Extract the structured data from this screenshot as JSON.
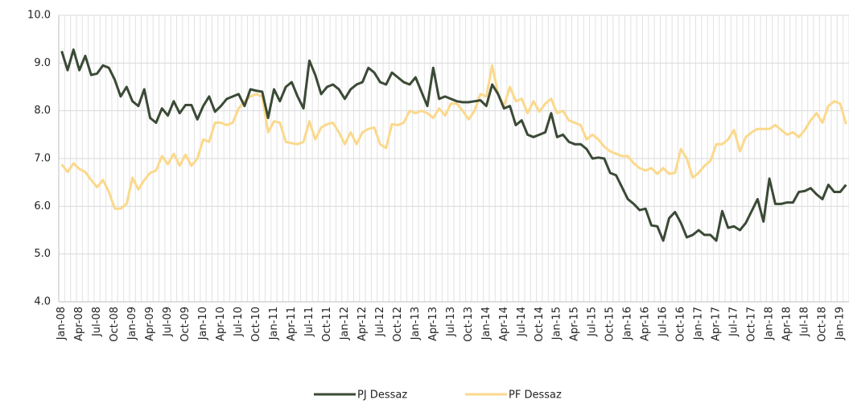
{
  "chart_data": {
    "type": "line",
    "categories": [
      "Jan-08",
      null,
      null,
      "Apr-08",
      null,
      null,
      "Jul-08",
      null,
      null,
      "Oct-08",
      null,
      null,
      "Jan-09",
      null,
      null,
      "Apr-09",
      null,
      null,
      "Jul-09",
      null,
      null,
      "Oct-09",
      null,
      null,
      "Jan-10",
      null,
      null,
      "Apr-10",
      null,
      null,
      "Jul-10",
      null,
      null,
      "Oct-10",
      null,
      null,
      "Jan-11",
      null,
      null,
      "Apr-11",
      null,
      null,
      "Jul-11",
      null,
      null,
      "Oct-11",
      null,
      null,
      "Jan-12",
      null,
      null,
      "Apr-12",
      null,
      null,
      "Jul-12",
      null,
      null,
      "Oct-12",
      null,
      null,
      "Jan-13",
      null,
      null,
      "Apr-13",
      null,
      null,
      "Jul-13",
      null,
      null,
      "Oct-13",
      null,
      null,
      "Jan-14",
      null,
      null,
      "Apr-14",
      null,
      null,
      "Jul-14",
      null,
      null,
      "Oct-14",
      null,
      null,
      "Jan-15",
      null,
      null,
      "Apr-15",
      null,
      null,
      "Jul-15",
      null,
      null,
      "Oct-15",
      null,
      null,
      "Jan-16",
      null,
      null,
      "Apr-16",
      null,
      null,
      "Jul-16",
      null,
      null,
      "Oct-16",
      null,
      null,
      "Jan-17",
      null,
      null,
      "Apr-17",
      null,
      null,
      "Jul-17",
      null,
      null,
      "Oct-17",
      null,
      null,
      "Jan-18",
      null,
      null,
      "Apr-18",
      null,
      null,
      "Jul-18",
      null,
      null,
      "Oct-18",
      null,
      null,
      "Jan-19",
      null
    ],
    "series": [
      {
        "name": "PJ Dessaz",
        "color": "#3b4a36",
        "values": [
          9.25,
          8.85,
          9.28,
          8.85,
          9.15,
          8.75,
          8.78,
          8.95,
          8.9,
          8.65,
          8.3,
          8.5,
          8.2,
          8.1,
          8.45,
          7.85,
          7.75,
          8.05,
          7.9,
          8.2,
          7.95,
          8.12,
          8.12,
          7.82,
          8.1,
          8.3,
          7.98,
          8.1,
          8.25,
          8.3,
          8.35,
          8.1,
          8.45,
          8.42,
          8.4,
          7.85,
          8.45,
          8.2,
          8.5,
          8.6,
          8.3,
          8.05,
          9.05,
          8.75,
          8.35,
          8.5,
          8.55,
          8.45,
          8.25,
          8.45,
          8.55,
          8.6,
          8.9,
          8.8,
          8.6,
          8.55,
          8.8,
          8.7,
          8.6,
          8.55,
          8.7,
          8.4,
          8.1,
          8.9,
          8.25,
          8.3,
          8.25,
          8.2,
          8.18,
          8.18,
          8.2,
          8.22,
          8.1,
          8.55,
          8.35,
          8.05,
          8.1,
          7.7,
          7.8,
          7.5,
          7.45,
          7.5,
          7.55,
          7.95,
          7.45,
          7.5,
          7.35,
          7.3,
          7.3,
          7.2,
          7.0,
          7.02,
          7.0,
          6.7,
          6.65,
          6.4,
          6.15,
          6.05,
          5.92,
          5.95,
          5.6,
          5.58,
          5.28,
          5.75,
          5.88,
          5.65,
          5.35,
          5.4,
          5.5,
          5.4,
          5.4,
          5.28,
          5.9,
          5.55,
          5.58,
          5.5,
          5.65,
          5.9,
          6.15,
          5.68,
          6.58,
          6.05,
          6.05,
          6.08,
          6.08,
          6.3,
          6.32,
          6.38,
          6.25,
          6.15,
          6.45,
          6.3,
          6.3,
          6.45
        ]
      },
      {
        "name": "PF Dessaz",
        "color": "#fbd98c",
        "values": [
          6.88,
          6.72,
          6.9,
          6.78,
          6.72,
          6.55,
          6.4,
          6.55,
          6.3,
          5.95,
          5.95,
          6.05,
          6.6,
          6.35,
          6.55,
          6.7,
          6.75,
          7.05,
          6.88,
          7.1,
          6.85,
          7.08,
          6.85,
          7.0,
          7.4,
          7.35,
          7.75,
          7.75,
          7.7,
          7.75,
          8.05,
          8.2,
          8.3,
          8.35,
          8.3,
          7.55,
          7.78,
          7.75,
          7.35,
          7.32,
          7.3,
          7.35,
          7.78,
          7.4,
          7.65,
          7.72,
          7.75,
          7.55,
          7.3,
          7.55,
          7.3,
          7.55,
          7.62,
          7.65,
          7.3,
          7.22,
          7.72,
          7.7,
          7.75,
          8.0,
          7.95,
          8.0,
          7.95,
          7.85,
          8.05,
          7.9,
          8.15,
          8.15,
          8.0,
          7.82,
          8.0,
          8.35,
          8.3,
          8.95,
          8.35,
          8.1,
          8.5,
          8.2,
          8.25,
          7.95,
          8.2,
          7.98,
          8.15,
          8.25,
          7.95,
          8.0,
          7.8,
          7.75,
          7.7,
          7.4,
          7.5,
          7.4,
          7.25,
          7.15,
          7.1,
          7.05,
          7.05,
          6.9,
          6.8,
          6.75,
          6.8,
          6.68,
          6.8,
          6.68,
          6.7,
          7.2,
          7.0,
          6.6,
          6.7,
          6.85,
          6.95,
          7.3,
          7.3,
          7.4,
          7.6,
          7.15,
          7.45,
          7.55,
          7.62,
          7.62,
          7.62,
          7.7,
          7.6,
          7.5,
          7.55,
          7.45,
          7.6,
          7.8,
          7.95,
          7.75,
          8.1,
          8.2,
          8.15,
          7.72
        ]
      }
    ],
    "ylim": [
      4,
      10
    ],
    "yticks": [
      {
        "value": 4,
        "label": "4.0"
      },
      {
        "value": 5,
        "label": "5.0"
      },
      {
        "value": 6,
        "label": "6.0"
      },
      {
        "value": 7,
        "label": "7.0"
      },
      {
        "value": 8,
        "label": "8.0"
      },
      {
        "value": 9,
        "label": "9.0"
      },
      {
        "value": 10,
        "label": "10.0"
      }
    ],
    "grid": true,
    "legend": "bottom"
  }
}
